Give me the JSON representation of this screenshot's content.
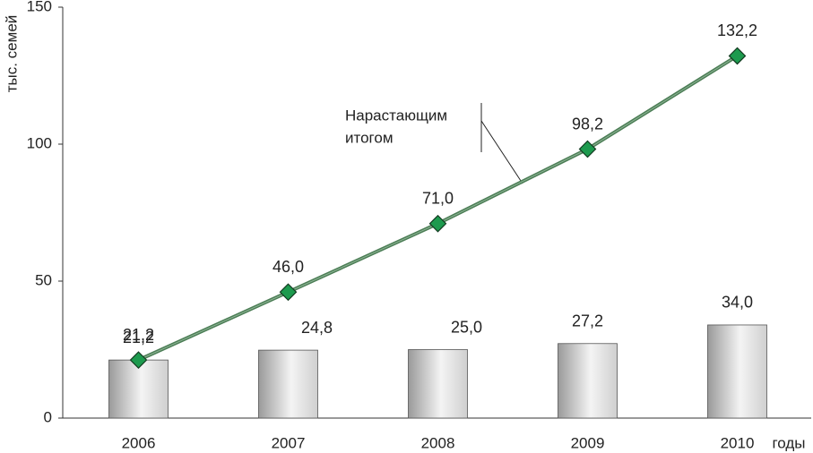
{
  "chart_data": {
    "type": "combo",
    "y_label": "тыс. семей",
    "x_label": "годы",
    "annotation": [
      "Нарастающим",
      "итогом"
    ],
    "categories": [
      "2006",
      "2007",
      "2008",
      "2009",
      "2010"
    ],
    "series": [
      {
        "type": "bar",
        "color": "#bdbdbd",
        "label_color": "#8a4a6e",
        "values": [
          21.2,
          24.8,
          25.0,
          27.2,
          34.0
        ],
        "value_labels": [
          "21,2",
          "24,8",
          "25,0",
          "27,2",
          "34,0"
        ]
      },
      {
        "type": "line",
        "color": "#4b7d55",
        "marker_color": "#1d9a4e",
        "label_color": "#3f7a5c",
        "values": [
          21.2,
          46.0,
          71.0,
          98.2,
          132.2
        ],
        "value_labels": [
          "21,2",
          "46,0",
          "71,0",
          "98,2",
          "132,2"
        ]
      }
    ],
    "ylim": [
      0,
      150
    ],
    "yticks": [
      0,
      50,
      100,
      150
    ]
  }
}
